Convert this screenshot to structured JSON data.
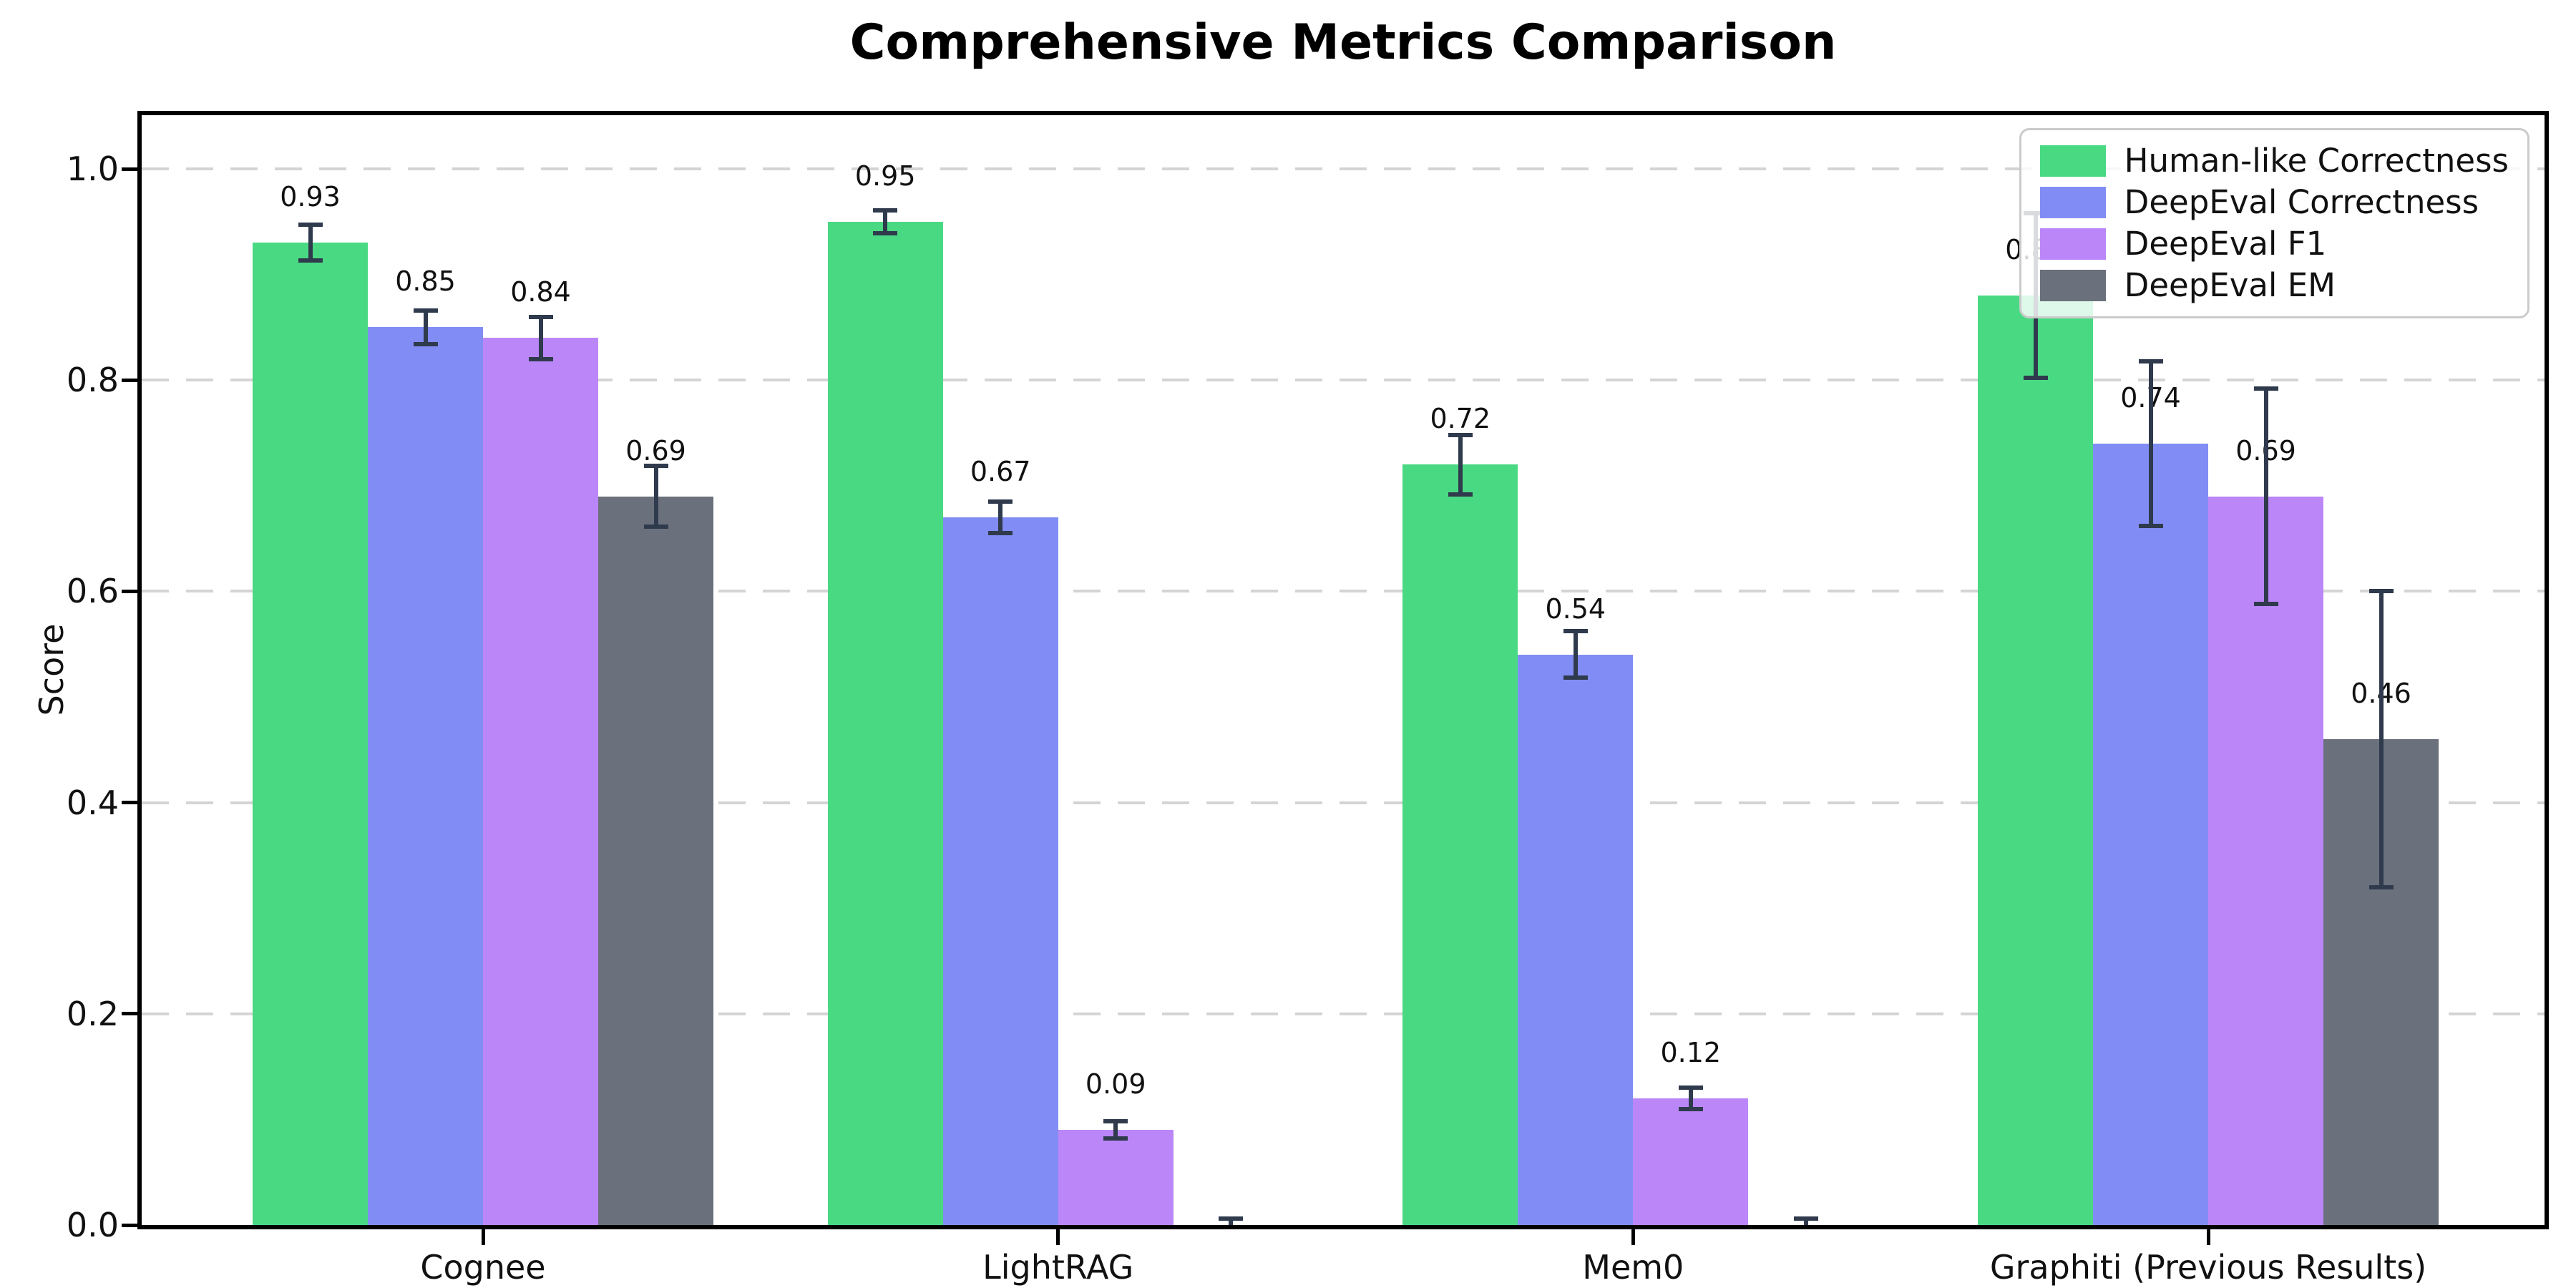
{
  "chart_data": {
    "type": "bar",
    "title": "Comprehensive Metrics Comparison",
    "ylabel": "Score",
    "categories": [
      "Cognee",
      "LightRAG",
      "Mem0",
      "Graphiti (Previous Results)"
    ],
    "series": [
      {
        "name": "Human-like Correctness",
        "color": "#4ad983",
        "values": [
          0.93,
          0.95,
          0.72,
          0.88
        ],
        "errors": [
          0.017,
          0.011,
          0.028,
          0.078
        ],
        "labels": [
          "0.93",
          "0.95",
          "0.72",
          "0.88"
        ]
      },
      {
        "name": "DeepEval Correctness",
        "color": "#818df4",
        "values": [
          0.85,
          0.67,
          0.54,
          0.74
        ],
        "errors": [
          0.016,
          0.015,
          0.022,
          0.078
        ],
        "labels": [
          "0.85",
          "0.67",
          "0.54",
          "0.74"
        ]
      },
      {
        "name": "DeepEval F1",
        "color": "#bb87f8",
        "values": [
          0.84,
          0.09,
          0.12,
          0.69
        ],
        "errors": [
          0.02,
          0.008,
          0.01,
          0.102
        ],
        "labels": [
          "0.84",
          "0.09",
          "0.12",
          "0.69"
        ]
      },
      {
        "name": "DeepEval EM",
        "color": "#6a717d",
        "values": [
          0.69,
          0.0,
          0.0,
          0.46
        ],
        "errors": [
          0.029,
          0.006,
          0.006,
          0.14
        ],
        "labels": [
          "0.69",
          "",
          "",
          "0.46"
        ]
      }
    ],
    "yticks": [
      "0.0",
      "0.2",
      "0.4",
      "0.6",
      "0.8",
      "1.0"
    ],
    "ytick_values": [
      0,
      0.2,
      0.4,
      0.6,
      0.8,
      1.0
    ],
    "ylim": [
      0,
      1.05
    ],
    "grid": "horizontal-dashed",
    "legend_position": "upper-right",
    "colors": {
      "error_bar": "#2f3a4d",
      "gridline": "#d4d4d4",
      "legend_border": "#cbcbcb",
      "spine": "#000000",
      "background": "#ffffff"
    }
  }
}
